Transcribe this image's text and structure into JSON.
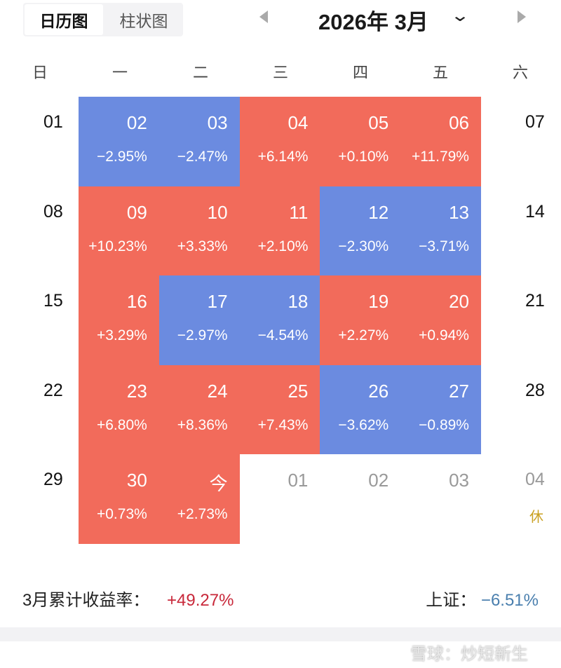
{
  "tabs": [
    {
      "label": "日历图",
      "active": true
    },
    {
      "label": "柱状图",
      "active": false
    }
  ],
  "header": {
    "month": "2026年 3月"
  },
  "weekdays": [
    "日",
    "一",
    "二",
    "三",
    "四",
    "五",
    "六"
  ],
  "colors": {
    "up": "#f26b5b",
    "down": "#6b8be0",
    "total_up": "#c8283a",
    "index_down": "#4a7fae",
    "rest": "#c9a020"
  },
  "rows": [
    {
      "sun": "01",
      "sat": "07",
      "days": [
        {
          "d": "02",
          "p": "−2.95%"
        },
        {
          "d": "03",
          "p": "−2.47%"
        },
        {
          "d": "04",
          "p": "+6.14%"
        },
        {
          "d": "05",
          "p": "+0.10%"
        },
        {
          "d": "06",
          "p": "+11.79%"
        }
      ]
    },
    {
      "sun": "08",
      "sat": "14",
      "days": [
        {
          "d": "09",
          "p": "+10.23%"
        },
        {
          "d": "10",
          "p": "+3.33%"
        },
        {
          "d": "11",
          "p": "+2.10%"
        },
        {
          "d": "12",
          "p": "−2.30%"
        },
        {
          "d": "13",
          "p": "−3.71%"
        }
      ]
    },
    {
      "sun": "15",
      "sat": "21",
      "days": [
        {
          "d": "16",
          "p": "+3.29%"
        },
        {
          "d": "17",
          "p": "−2.97%"
        },
        {
          "d": "18",
          "p": "−4.54%"
        },
        {
          "d": "19",
          "p": "+2.27%"
        },
        {
          "d": "20",
          "p": "+0.94%"
        }
      ]
    },
    {
      "sun": "22",
      "sat": "28",
      "days": [
        {
          "d": "23",
          "p": "+6.80%"
        },
        {
          "d": "24",
          "p": "+8.36%"
        },
        {
          "d": "25",
          "p": "+7.43%"
        },
        {
          "d": "26",
          "p": "−3.62%"
        },
        {
          "d": "27",
          "p": "−0.89%"
        }
      ]
    },
    {
      "sun": "29",
      "sat": "04",
      "sat_note": "休",
      "days": [
        {
          "d": "30",
          "p": "+0.73%"
        },
        {
          "d": "今",
          "p": "+2.73%"
        },
        {
          "d": "01",
          "out": true
        },
        {
          "d": "02",
          "out": true
        },
        {
          "d": "03",
          "out": true
        }
      ]
    }
  ],
  "summary": {
    "label": "3月累计收益率：",
    "value": "+49.27%",
    "index_label": "上证：",
    "index_value": "−6.51%"
  },
  "watermark": "雪球：炒短新生"
}
